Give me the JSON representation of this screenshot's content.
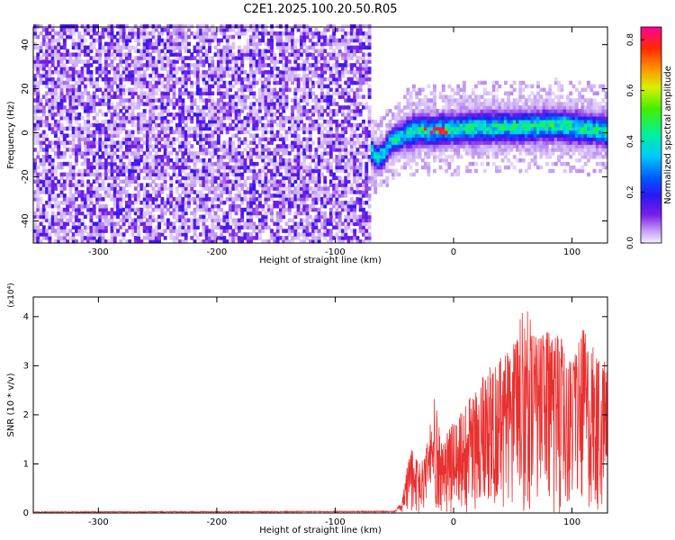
{
  "title": "C2E1.2025.100.20.50.R05",
  "colors": {
    "line": "#e8302f",
    "axis": "#000000",
    "background": "#ffffff"
  },
  "chart_data": [
    {
      "type": "heatmap",
      "xlabel": "Height of straight line (km)",
      "ylabel": "Frequency (Hz)",
      "xlim": [
        -355,
        130
      ],
      "ylim": [
        -50,
        48
      ],
      "x_ticks": [
        "-300",
        "-200",
        "-100",
        "0",
        "100"
      ],
      "y_ticks": [
        "-40",
        "-20",
        "0",
        "20",
        "40"
      ],
      "colorbar": {
        "label": "Normalized spectral amplitude",
        "range": [
          0.0,
          0.85
        ],
        "ticks": [
          "0.0",
          "0.2",
          "0.4",
          "0.6",
          "0.8"
        ]
      },
      "noise_region": {
        "x_range": [
          -355,
          -72
        ],
        "description_level": 0.12
      },
      "ridge_centerline": [
        {
          "x": -72,
          "y": -8
        },
        {
          "x": -66,
          "y": -12
        },
        {
          "x": -60,
          "y": -10
        },
        {
          "x": -54,
          "y": -4
        },
        {
          "x": -48,
          "y": -3
        },
        {
          "x": -40,
          "y": -1
        },
        {
          "x": -30,
          "y": 1
        },
        {
          "x": -20,
          "y": 0
        },
        {
          "x": -10,
          "y": 1
        },
        {
          "x": 0,
          "y": 1
        },
        {
          "x": 20,
          "y": 2
        },
        {
          "x": 40,
          "y": 2
        },
        {
          "x": 60,
          "y": 2
        },
        {
          "x": 80,
          "y": 3
        },
        {
          "x": 100,
          "y": 2
        },
        {
          "x": 115,
          "y": 1
        },
        {
          "x": 130,
          "y": 0
        }
      ],
      "peak_amplitude": 0.85
    },
    {
      "type": "line",
      "xlabel": "Height of straight line (km)",
      "ylabel": "SNR (10 * v/v)",
      "y_multiplier": "(x10⁴)",
      "xlim": [
        -355,
        130
      ],
      "ylim": [
        0,
        4.4
      ],
      "x_ticks": [
        "-300",
        "-200",
        "-100",
        "0",
        "100"
      ],
      "y_ticks": [
        "0",
        "1",
        "2",
        "3",
        "4"
      ],
      "envelope": [
        {
          "x": -355,
          "y": 0.02
        },
        {
          "x": -50,
          "y": 0.03
        },
        {
          "x": -44,
          "y": 0.15
        },
        {
          "x": -40,
          "y": 0.9
        },
        {
          "x": -36,
          "y": 1.3
        },
        {
          "x": -30,
          "y": 1.1
        },
        {
          "x": -24,
          "y": 1.2
        },
        {
          "x": -16,
          "y": 2.4
        },
        {
          "x": -10,
          "y": 1.4
        },
        {
          "x": 0,
          "y": 1.9
        },
        {
          "x": 10,
          "y": 2.2
        },
        {
          "x": 20,
          "y": 2.6
        },
        {
          "x": 30,
          "y": 3.0
        },
        {
          "x": 40,
          "y": 3.2
        },
        {
          "x": 50,
          "y": 3.5
        },
        {
          "x": 60,
          "y": 4.3
        },
        {
          "x": 70,
          "y": 3.6
        },
        {
          "x": 80,
          "y": 3.7
        },
        {
          "x": 90,
          "y": 3.6
        },
        {
          "x": 100,
          "y": 3.1
        },
        {
          "x": 110,
          "y": 3.8
        },
        {
          "x": 120,
          "y": 3.3
        },
        {
          "x": 130,
          "y": 3.1
        }
      ]
    }
  ]
}
